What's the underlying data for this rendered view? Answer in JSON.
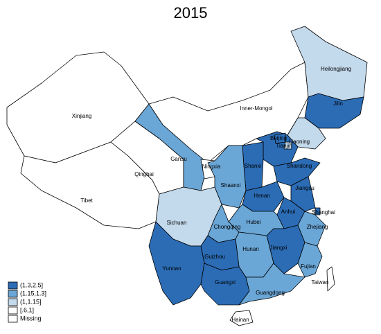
{
  "title": "2015",
  "legend": [
    {
      "label": "(1.3,2.5]",
      "color": "#2b6cb5"
    },
    {
      "label": "(1.15,1.3]",
      "color": "#6aa6d6"
    },
    {
      "label": "(1,1.15]",
      "color": "#c3d9ec"
    },
    {
      "label": "[.6,1]",
      "color": "#ffffff"
    },
    {
      "label": "Missing",
      "color": "#ffffff"
    }
  ],
  "regions": [
    {
      "name": "Xinjiang",
      "class": 3
    },
    {
      "name": "Tibet",
      "class": 3
    },
    {
      "name": "Qinghai",
      "class": 3
    },
    {
      "name": "Gansu",
      "class": 1
    },
    {
      "name": "Inner-Mongol",
      "class": 3
    },
    {
      "name": "Heilongjiang",
      "class": 2
    },
    {
      "name": "Jilin",
      "class": 0
    },
    {
      "name": "Liaoning",
      "class": 2
    },
    {
      "name": null,
      "class": 0
    },
    {
      "name": "Beijing",
      "class": 0
    },
    {
      "name": "Tianjin",
      "class": 2
    },
    {
      "name": "Ningxia",
      "class": 3
    },
    {
      "name": "Shanxi",
      "class": 0
    },
    {
      "name": "Shaanxi",
      "class": 1
    },
    {
      "name": "Shandong",
      "class": 0
    },
    {
      "name": "Henan",
      "class": 0
    },
    {
      "name": "Jiangsu",
      "class": 0
    },
    {
      "name": "Anhui",
      "class": 0
    },
    {
      "name": "Shanghai",
      "class": 0
    },
    {
      "name": "Hubei",
      "class": 1
    },
    {
      "name": "Sichuan",
      "class": 2
    },
    {
      "name": "Chongqing",
      "class": 1
    },
    {
      "name": "Zhejiang",
      "class": 1
    },
    {
      "name": "Jiangxi",
      "class": 0
    },
    {
      "name": "Hunan",
      "class": 1
    },
    {
      "name": "Guizhou",
      "class": 0
    },
    {
      "name": "Yunnan",
      "class": 0
    },
    {
      "name": "Guangxi",
      "class": 0
    },
    {
      "name": "Fujian",
      "class": 1
    },
    {
      "name": "Guangdong",
      "class": 1
    },
    {
      "name": "Hainan",
      "class": 3
    },
    {
      "name": "Taiwan",
      "class": 4
    }
  ]
}
